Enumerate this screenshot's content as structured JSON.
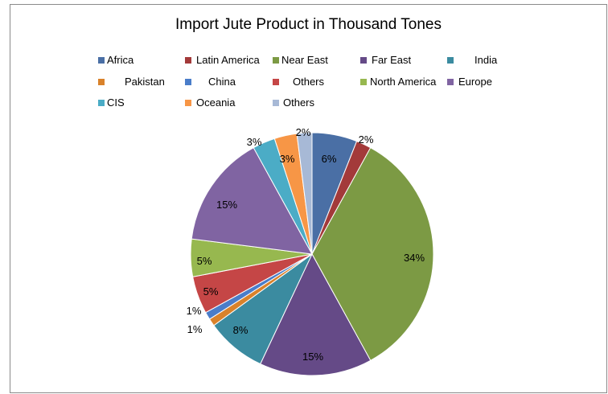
{
  "chart_data": {
    "type": "pie",
    "title": "Import Jute Product in Thousand Tones",
    "legend_position": "top",
    "categories": [
      "Africa",
      "Latin America",
      "Near East",
      "Far East",
      "India",
      "Pakistan",
      "China",
      "Others",
      "North America",
      "Europe",
      "CIS",
      "Oceania",
      "Others"
    ],
    "values": [
      6,
      2,
      34,
      15,
      8,
      1,
      1,
      5,
      5,
      15,
      3,
      3,
      2
    ],
    "data_labels": [
      "6%",
      "2%",
      "34%",
      "15%",
      "8%",
      "1%",
      "1%",
      "5%",
      "5%",
      "15%",
      "3%",
      "3%",
      "2%"
    ],
    "colors": [
      "#4a6fa5",
      "#a33a3a",
      "#7c9a44",
      "#654a87",
      "#3b8ba0",
      "#d9822b",
      "#4a7dc9",
      "#c54646",
      "#97b84f",
      "#8064a2",
      "#4bacc6",
      "#f79646",
      "#a7b9d6"
    ]
  }
}
